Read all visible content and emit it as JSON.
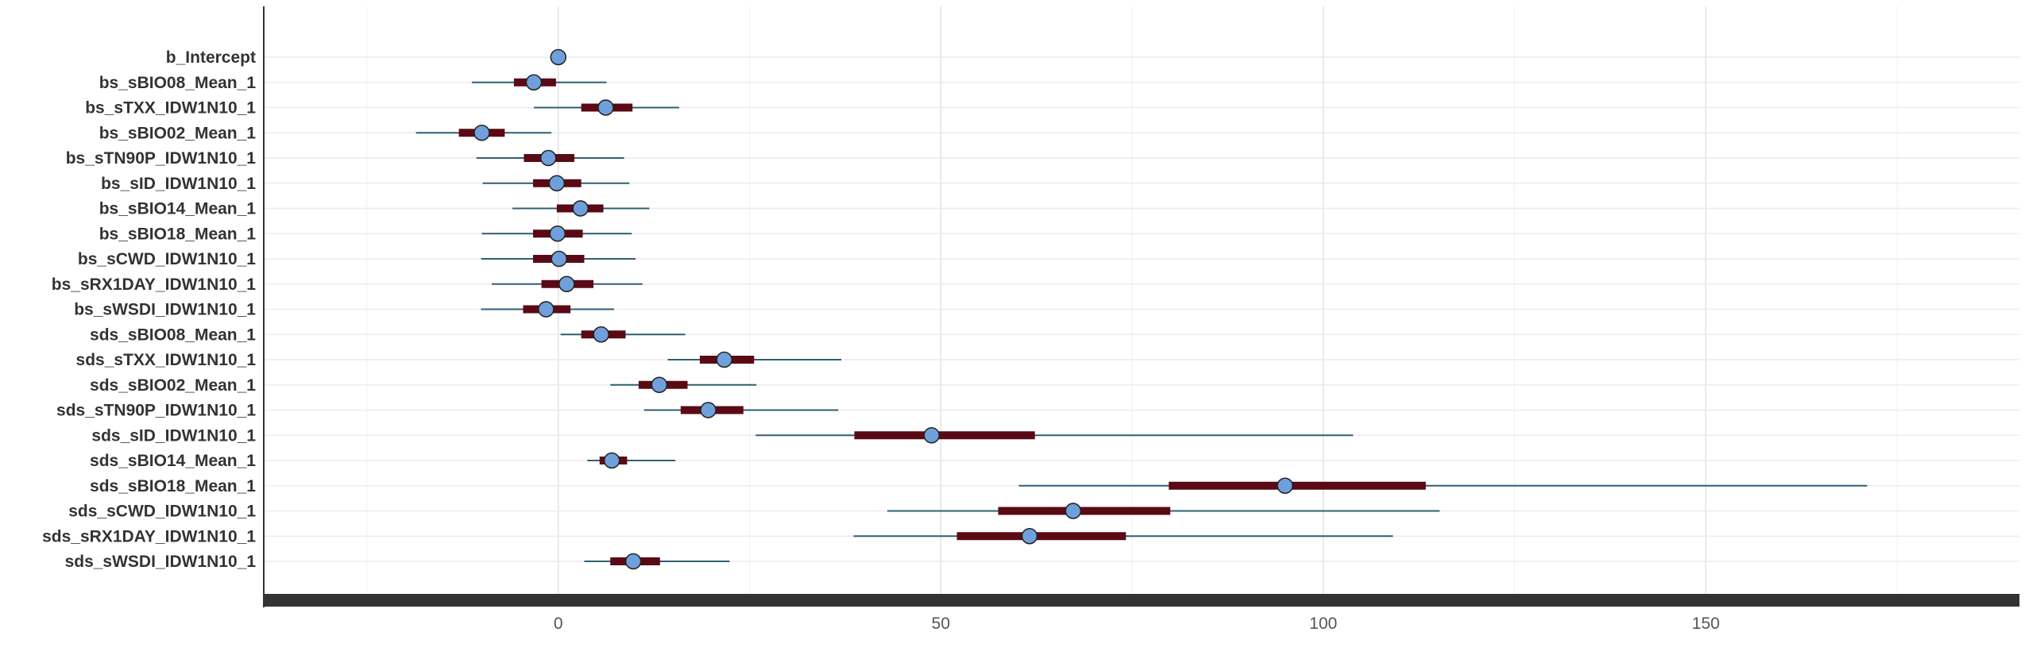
{
  "chart_data": {
    "type": "interval",
    "xlim": [
      -38.5,
      191
    ],
    "xticks": [
      0,
      50,
      100,
      150
    ],
    "grid": true,
    "colors": {
      "outer_interval": "#2f5f73",
      "inner_interval": "#5a0a14",
      "point_fill": "#6fa0dc",
      "point_stroke": "#222222",
      "axis_bar": "#333333"
    },
    "rows": [
      {
        "label": "b_Intercept",
        "estimate": 0,
        "inner": [
          0,
          0
        ],
        "outer": [
          0,
          0
        ]
      },
      {
        "label": "bs_sBIO08_Mean_1",
        "estimate": -3.2,
        "inner": [
          -5.8,
          -0.3
        ],
        "outer": [
          -11.3,
          6.3
        ]
      },
      {
        "label": "bs_sTXX_IDW1N10_1",
        "estimate": 6.2,
        "inner": [
          3.0,
          9.7
        ],
        "outer": [
          -3.2,
          15.8
        ]
      },
      {
        "label": "bs_sBIO02_Mean_1",
        "estimate": -10.0,
        "inner": [
          -13.0,
          -7.0
        ],
        "outer": [
          -18.6,
          -0.9
        ]
      },
      {
        "label": "bs_sTN90P_IDW1N10_1",
        "estimate": -1.3,
        "inner": [
          -4.5,
          2.1
        ],
        "outer": [
          -10.7,
          8.6
        ]
      },
      {
        "label": "bs_sID_IDW1N10_1",
        "estimate": -0.2,
        "inner": [
          -3.3,
          3.0
        ],
        "outer": [
          -9.9,
          9.3
        ]
      },
      {
        "label": "bs_sBIO14_Mean_1",
        "estimate": 2.9,
        "inner": [
          -0.2,
          5.9
        ],
        "outer": [
          -6.0,
          11.9
        ]
      },
      {
        "label": "bs_sBIO18_Mean_1",
        "estimate": -0.1,
        "inner": [
          -3.3,
          3.2
        ],
        "outer": [
          -10.0,
          9.6
        ]
      },
      {
        "label": "bs_sCWD_IDW1N10_1",
        "estimate": 0.1,
        "inner": [
          -3.3,
          3.4
        ],
        "outer": [
          -10.1,
          10.1
        ]
      },
      {
        "label": "bs_sRX1DAY_IDW1N10_1",
        "estimate": 1.1,
        "inner": [
          -2.2,
          4.6
        ],
        "outer": [
          -8.7,
          11.0
        ]
      },
      {
        "label": "bs_sWSDI_IDW1N10_1",
        "estimate": -1.6,
        "inner": [
          -4.6,
          1.6
        ],
        "outer": [
          -10.1,
          7.3
        ]
      },
      {
        "label": "sds_sBIO08_Mean_1",
        "estimate": 5.6,
        "inner": [
          3.0,
          8.8
        ],
        "outer": [
          0.3,
          16.6
        ]
      },
      {
        "label": "sds_sTXX_IDW1N10_1",
        "estimate": 21.7,
        "inner": [
          18.5,
          25.6
        ],
        "outer": [
          14.3,
          37.0
        ]
      },
      {
        "label": "sds_sBIO02_Mean_1",
        "estimate": 13.2,
        "inner": [
          10.5,
          16.9
        ],
        "outer": [
          6.8,
          25.9
        ]
      },
      {
        "label": "sds_sTN90P_IDW1N10_1",
        "estimate": 19.6,
        "inner": [
          16.0,
          24.2
        ],
        "outer": [
          11.2,
          36.6
        ]
      },
      {
        "label": "sds_sID_IDW1N10_1",
        "estimate": 48.8,
        "inner": [
          38.7,
          62.3
        ],
        "outer": [
          25.8,
          103.9
        ]
      },
      {
        "label": "sds_sBIO14_Mean_1",
        "estimate": 7.0,
        "inner": [
          5.4,
          9.0
        ],
        "outer": [
          3.8,
          15.3
        ]
      },
      {
        "label": "sds_sBIO18_Mean_1",
        "estimate": 95.0,
        "inner": [
          79.8,
          113.4
        ],
        "outer": [
          60.2,
          171.1
        ]
      },
      {
        "label": "sds_sCWD_IDW1N10_1",
        "estimate": 67.3,
        "inner": [
          57.5,
          80.0
        ],
        "outer": [
          43.0,
          115.2
        ]
      },
      {
        "label": "sds_sRX1DAY_IDW1N10_1",
        "estimate": 61.6,
        "inner": [
          52.1,
          74.2
        ],
        "outer": [
          38.6,
          109.1
        ]
      },
      {
        "label": "sds_sWSDI_IDW1N10_1",
        "estimate": 9.8,
        "inner": [
          6.8,
          13.3
        ],
        "outer": [
          3.4,
          22.4
        ]
      }
    ]
  }
}
